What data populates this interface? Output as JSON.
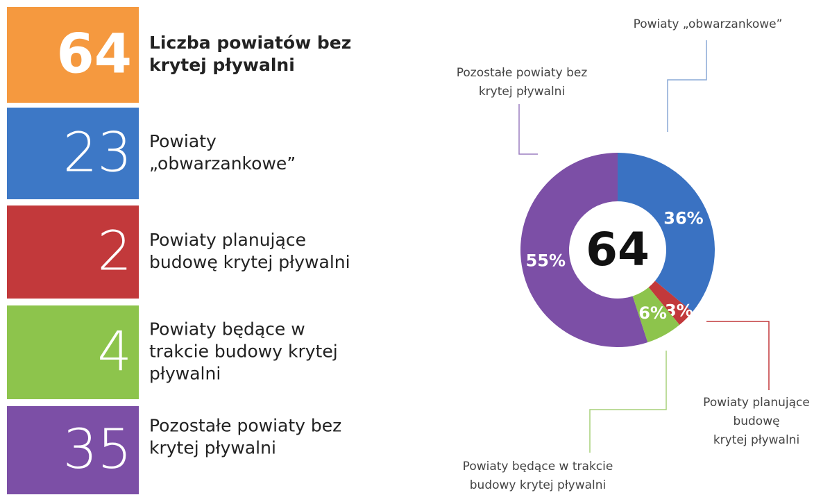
{
  "tiles": [
    {
      "number": 64,
      "color": "#f5993f",
      "bold": true,
      "label_lines": [
        "Liczba powiatów bez",
        "krytej pływalni"
      ]
    },
    {
      "number": 23,
      "color": "#3d78c6",
      "bold": false,
      "label_lines": [
        "Powiaty",
        "„obwarzankowe”"
      ]
    },
    {
      "number": 2,
      "color": "#c2393b",
      "bold": false,
      "label_lines": [
        "Powiaty planujące",
        "budowę krytej pływalni"
      ]
    },
    {
      "number": 4,
      "color": "#8dc44c",
      "bold": false,
      "label_lines": [
        "Powiaty będące w",
        "trakcie budowy krytej",
        "pływalni"
      ]
    },
    {
      "number": 35,
      "color": "#7c4fa6",
      "bold": false,
      "label_lines": [
        "Pozostałe powiaty bez",
        "krytej pływalni"
      ]
    }
  ],
  "chart_data": {
    "type": "donut",
    "center_label": 64,
    "categories": [
      [
        "Powiaty „obwarzankowe”"
      ],
      [
        "Powiaty planujące",
        "budowę",
        "krytej pływalni"
      ],
      [
        "Powiaty będące w trakcie",
        "budowy krytej pływalni"
      ],
      [
        "Pozostałe powiaty bez",
        "krytej pływalni"
      ]
    ],
    "values": [
      36,
      3,
      6,
      55
    ],
    "value_labels": [
      "36%",
      "3%",
      "6%",
      "55%"
    ],
    "colors": [
      "#3a72c2",
      "#c2393b",
      "#8dc44c",
      "#7c4fa6"
    ]
  }
}
